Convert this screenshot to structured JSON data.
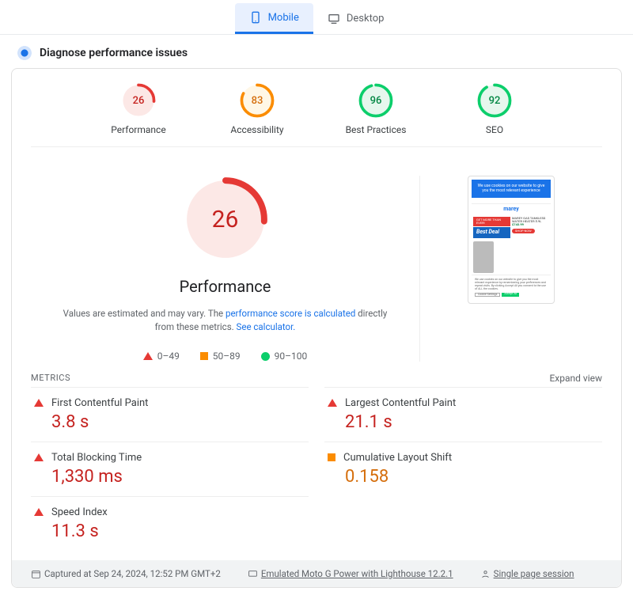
{
  "colors": {
    "red": "#e53935",
    "orange": "#fb8c00",
    "green": "#0cce6b",
    "red_text": "#c5221f",
    "orange_text": "#d56e0c",
    "green_text": "#018642",
    "blue": "#1a73e8",
    "red_fill": "#fce8e6"
  },
  "tabs": {
    "mobile": "Mobile",
    "desktop": "Desktop"
  },
  "diagnose_title": "Diagnose performance issues",
  "gauges": [
    {
      "label": "Performance",
      "value": 26,
      "color": "#e53935",
      "text": "#c5221f",
      "fill": "#fce8e6"
    },
    {
      "label": "Accessibility",
      "value": 83,
      "color": "#fb8c00",
      "text": "#d56e0c",
      "fill": "#fff7e6"
    },
    {
      "label": "Best Practices",
      "value": 96,
      "color": "#0cce6b",
      "text": "#018642",
      "fill": "#e6f7ed"
    },
    {
      "label": "SEO",
      "value": 92,
      "color": "#0cce6b",
      "text": "#018642",
      "fill": "#e6f7ed"
    }
  ],
  "main_score": {
    "value": 26,
    "label": "Performance"
  },
  "note": {
    "pre": "Values are estimated and may vary. The ",
    "link1": "performance score is calculated",
    "mid": " directly from these metrics. ",
    "link2": "See calculator."
  },
  "legend": {
    "r0": "0–49",
    "r1": "50–89",
    "r2": "90–100"
  },
  "metrics_label": "METRICS",
  "expand": "Expand view",
  "metrics_left": [
    {
      "name": "First Contentful Paint",
      "value": "3.8 s",
      "status": "red"
    },
    {
      "name": "Total Blocking Time",
      "value": "1,330 ms",
      "status": "red"
    },
    {
      "name": "Speed Index",
      "value": "11.3 s",
      "status": "red"
    }
  ],
  "metrics_right": [
    {
      "name": "Largest Contentful Paint",
      "value": "21.1 s",
      "status": "red"
    },
    {
      "name": "Cumulative Layout Shift",
      "value": "0.158",
      "status": "orange"
    }
  ],
  "footer": {
    "captured": "Captured at Sep 24, 2024, 12:52 PM GMT+2",
    "emulated": "Emulated Moto G Power with Lighthouse 12.2.1",
    "session": "Single page session"
  },
  "phone": {
    "banner": "We use cookies on our website to give you the most relevant experience",
    "logo": "marey",
    "badge": "GET MORE THAN EVER!",
    "best": "Best Deal",
    "prod_title": "MAREY GAS TANKLESS WATER HEATER 5.9L",
    "price": "$745.99",
    "shop": "SHOP NOW",
    "cookie": "We use cookies on our website to give you the most relevant experience by remembering your preferences and repeat visits. By clicking Accept All you consent to the use of ALL the cookies.",
    "btn1": "Cookie Settings",
    "btn2": "Accept All"
  }
}
